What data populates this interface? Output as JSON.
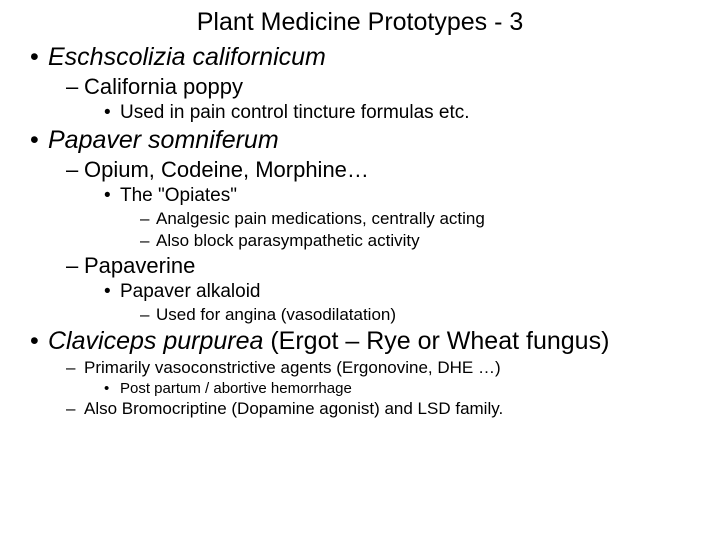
{
  "title": "Plant Medicine Prototypes - 3",
  "items": [
    {
      "text": "Eschscolizia californicum",
      "sub": [
        {
          "text": "California poppy",
          "sub": [
            {
              "text": "Used in pain control tincture formulas etc."
            }
          ]
        }
      ]
    },
    {
      "text": "Papaver somniferum",
      "sub": [
        {
          "text": "Opium, Codeine, Morphine…",
          "sub": [
            {
              "text": "The \"Opiates\"",
              "sub": [
                {
                  "text": "Analgesic pain medications, centrally acting"
                },
                {
                  "text": "Also block parasympathetic activity"
                }
              ]
            }
          ]
        },
        {
          "text": "Papaverine",
          "sub": [
            {
              "text": "Papaver alkaloid",
              "sub": [
                {
                  "text": "Used for angina (vasodilatation)"
                }
              ]
            }
          ]
        }
      ]
    },
    {
      "text": "Claviceps purpurea",
      "tail": " (Ergot – Rye or Wheat fungus)",
      "small": true,
      "sub": [
        {
          "text": "Primarily vasoconstrictive agents (Ergonovine, DHE …)",
          "sub": [
            {
              "text": "Post partum / abortive hemorrhage"
            }
          ]
        },
        {
          "text": "Also Bromocriptine (Dopamine agonist) and LSD family."
        }
      ]
    }
  ]
}
